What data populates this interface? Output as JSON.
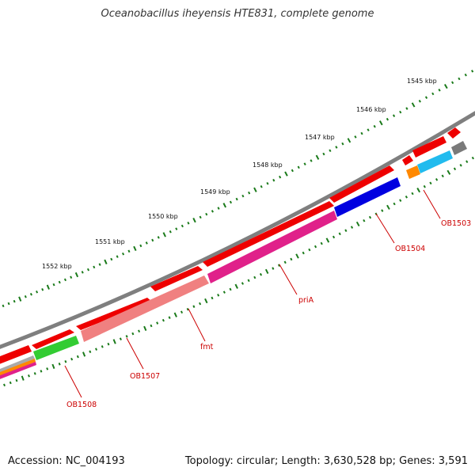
{
  "title": "Oceanobacillus iheyensis HTE831, complete genome",
  "footer": {
    "accession": "Accession: NC_004193",
    "summary": "Topology: circular; Length: 3,630,528 bp; Genes: 3,591"
  },
  "scale_labels": [
    "1545 kbp",
    "1546 kbp",
    "1547 kbp",
    "1548 kbp",
    "1549 kbp",
    "1550 kbp",
    "1551 kbp",
    "1552 kbp"
  ],
  "gene_labels": [
    "OB1503",
    "OB1504",
    "priA",
    "fmt",
    "OB1507",
    "OB1508"
  ],
  "colors": {
    "backbone": "#7f7f7f",
    "forward_gene": "#ee0000",
    "tick": "#1a7a1a",
    "label": "#cc0000",
    "pink": "#e0218a",
    "salmon": "#f08080",
    "blue": "#0000e0",
    "green": "#33cc33",
    "cyan": "#22bbee",
    "orange": "#ff8800",
    "grey": "#7a7a7a"
  }
}
